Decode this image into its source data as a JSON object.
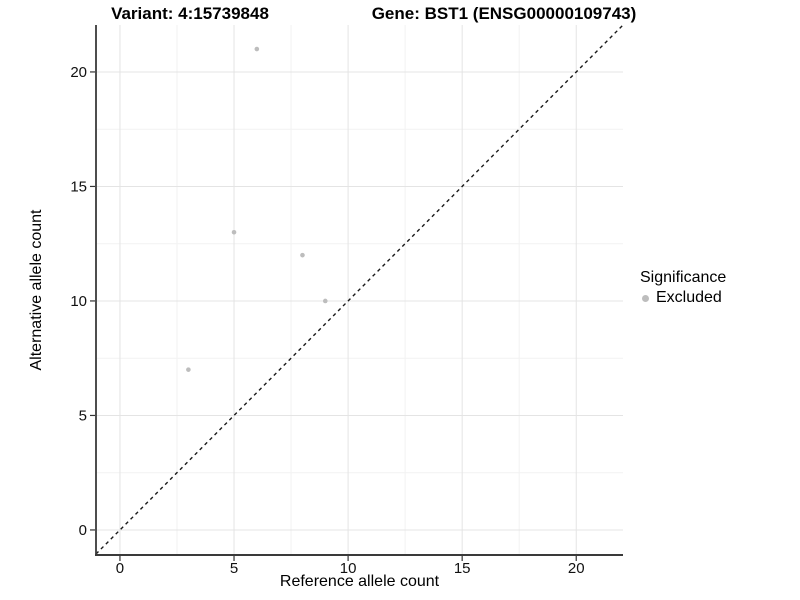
{
  "chart_data": {
    "type": "scatter",
    "title_left": "Variant: 4:15739848",
    "title_right": "Gene: BST1 (ENSG00000109743)",
    "xlabel": "Reference allele count",
    "ylabel": "Alternative allele count",
    "xlim": [
      -1.05,
      22.05
    ],
    "ylim": [
      -1.05,
      22.05
    ],
    "x_ticks": [
      0,
      5,
      10,
      15,
      20
    ],
    "y_ticks": [
      0,
      5,
      10,
      15,
      20
    ],
    "x_minor": [
      2.5,
      7.5,
      12.5,
      17.5
    ],
    "y_minor": [
      2.5,
      7.5,
      12.5,
      17.5
    ],
    "grid": true,
    "series": [
      {
        "name": "Excluded",
        "color": "#bdbdbd",
        "points": [
          [
            6,
            21
          ],
          [
            5,
            13
          ],
          [
            8,
            12
          ],
          [
            9,
            10
          ],
          [
            3,
            7
          ]
        ]
      }
    ],
    "abline": {
      "slope": 1,
      "intercept": 0,
      "style": "dashed",
      "color": "#1a1a1a"
    },
    "legend": {
      "title": "Significance",
      "position": "right",
      "entries": [
        {
          "label": "Excluded",
          "color": "#bdbdbd"
        }
      ]
    },
    "colors": {
      "background": "#ffffff",
      "grid_major": "#e4e4e4",
      "grid_minor": "#f2f2f2",
      "axis": "#3a3a3a",
      "tick": "#333333",
      "text": "#111111"
    }
  }
}
